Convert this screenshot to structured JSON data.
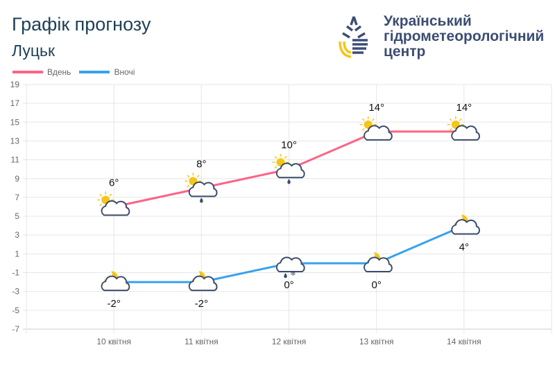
{
  "header": {
    "title": "Графік прогнозу",
    "city": "Луцьк"
  },
  "organization": {
    "lines": [
      "Український",
      "гідрометеорологічний",
      "центр"
    ]
  },
  "colors": {
    "day": "#ff6384",
    "night": "#36a2eb",
    "logo_blue": "#3c4d73",
    "logo_yellow": "#f5c518"
  },
  "chart_data": {
    "type": "line",
    "categories": [
      "10 квітня",
      "11 квітня",
      "12 квітня",
      "13 квітня",
      "14 квітня"
    ],
    "ylim": [
      -7,
      19
    ],
    "yticks": [
      19,
      17,
      15,
      13,
      11,
      9,
      7,
      5,
      3,
      1,
      -1,
      -3,
      -5,
      -7
    ],
    "grid": true,
    "legend_position": "top-left",
    "series": [
      {
        "name": "Вдень",
        "values": [
          6,
          8,
          10,
          14,
          14
        ],
        "labels": [
          "6°",
          "8°",
          "10°",
          "14°",
          "14°"
        ],
        "icons": [
          "sun-cloud",
          "sun-cloud-rain",
          "sun-cloud-rain",
          "sun-cloud",
          "sun-cloud"
        ]
      },
      {
        "name": "Вночі",
        "values": [
          -2,
          -2,
          0,
          0,
          4
        ],
        "labels": [
          "-2°",
          "-2°",
          "0°",
          "0°",
          "4°"
        ],
        "icons": [
          "moon-cloud",
          "moon-cloud",
          "cloud-rain-snow",
          "moon-cloud",
          "moon-cloud"
        ]
      }
    ]
  }
}
